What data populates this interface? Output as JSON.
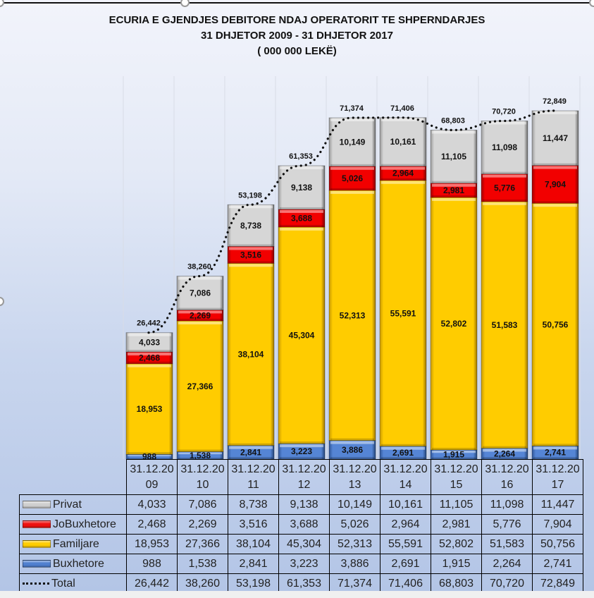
{
  "title": {
    "line1": "ECURIA E GJENDJES DEBITORE NDAJ OPERATORIT TE SHPERNDARJES",
    "line2": "31 DHJETOR 2009  - 31 DHJETOR 2017",
    "line3": "( 000 000 LEKË)"
  },
  "colors": {
    "Privat": "#cfcfcf",
    "JoBuxhetore": "#ee1111",
    "Familjare": "#ffcc00",
    "Buxhetore": "#4f7fcf",
    "Total": "#111111"
  },
  "chart_data": {
    "type": "bar",
    "stacked": true,
    "title": "ECURIA E GJENDJES DEBITORE NDAJ OPERATORIT TE SHPERNDARJES",
    "subtitle": "31 DHJETOR 2009  - 31 DHJETOR 2017 ( 000 000 LEKË)",
    "xlabel": "",
    "ylabel": "",
    "ylim": [
      0,
      75000
    ],
    "grid": "vertical",
    "legend_placement": "data-table",
    "categories": [
      [
        "31.12.20",
        "09"
      ],
      [
        "31.12.20",
        "10"
      ],
      [
        "31.12.20",
        "11"
      ],
      [
        "31.12.20",
        "12"
      ],
      [
        "31.12.20",
        "13"
      ],
      [
        "31.12.20",
        "14"
      ],
      [
        "31.12.20",
        "15"
      ],
      [
        "31.12.20",
        "16"
      ],
      [
        "31.12.20",
        "17"
      ]
    ],
    "series": [
      {
        "name": "Buxhetore",
        "values": [
          988,
          1538,
          2841,
          3223,
          3886,
          2691,
          1915,
          2264,
          2741
        ],
        "labels": [
          "988",
          "1,538",
          "2,841",
          "3,223",
          "3,886",
          "2,691",
          "1,915",
          "2,264",
          "2,741"
        ]
      },
      {
        "name": "Familjare",
        "values": [
          18953,
          27366,
          38104,
          45304,
          52313,
          55591,
          52802,
          51583,
          50756
        ],
        "labels": [
          "18,953",
          "27,366",
          "38,104",
          "45,304",
          "52,313",
          "55,591",
          "52,802",
          "51,583",
          "50,756"
        ]
      },
      {
        "name": "JoBuxhetore",
        "values": [
          2468,
          2269,
          3516,
          3688,
          5026,
          2964,
          2981,
          5776,
          7904
        ],
        "labels": [
          "2,468",
          "2,269",
          "3,516",
          "3,688",
          "5,026",
          "2,964",
          "2,981",
          "5,776",
          "7,904"
        ]
      },
      {
        "name": "Privat",
        "values": [
          4033,
          7086,
          8738,
          9138,
          10149,
          10161,
          11105,
          11098,
          11447
        ],
        "labels": [
          "4,033",
          "7,086",
          "8,738",
          "9,138",
          "10,149",
          "10,161",
          "11,105",
          "11,098",
          "11,447"
        ]
      }
    ],
    "total": {
      "name": "Total",
      "type": "line",
      "style": "dotted",
      "values": [
        26442,
        38260,
        53198,
        61353,
        71374,
        71406,
        68803,
        70720,
        72849
      ],
      "labels": [
        "26,442",
        "38,260",
        "53,198",
        "61,353",
        "71,374",
        "71,406",
        "68,803",
        "70,720",
        "72,849"
      ]
    }
  },
  "table": {
    "rows": [
      {
        "name": "Privat",
        "swatch": "Privat",
        "values": [
          "4,033",
          "7,086",
          "8,738",
          "9,138",
          "10,149",
          "10,161",
          "11,105",
          "11,098",
          "11,447"
        ]
      },
      {
        "name": "JoBuxhetore",
        "swatch": "JoBuxhetore",
        "values": [
          "2,468",
          "2,269",
          "3,516",
          "3,688",
          "5,026",
          "2,964",
          "2,981",
          "5,776",
          "7,904"
        ]
      },
      {
        "name": "Familjare",
        "swatch": "Familjare",
        "values": [
          "18,953",
          "27,366",
          "38,104",
          "45,304",
          "52,313",
          "55,591",
          "52,802",
          "51,583",
          "50,756"
        ]
      },
      {
        "name": "Buxhetore",
        "swatch": "Buxhetore",
        "values": [
          "988",
          "1,538",
          "2,841",
          "3,223",
          "3,886",
          "2,691",
          "1,915",
          "2,264",
          "2,741"
        ]
      },
      {
        "name": "Total",
        "swatch": "Total",
        "values": [
          "26,442",
          "38,260",
          "53,198",
          "61,353",
          "71,374",
          "71,406",
          "68,803",
          "70,720",
          "72,849"
        ]
      }
    ]
  }
}
